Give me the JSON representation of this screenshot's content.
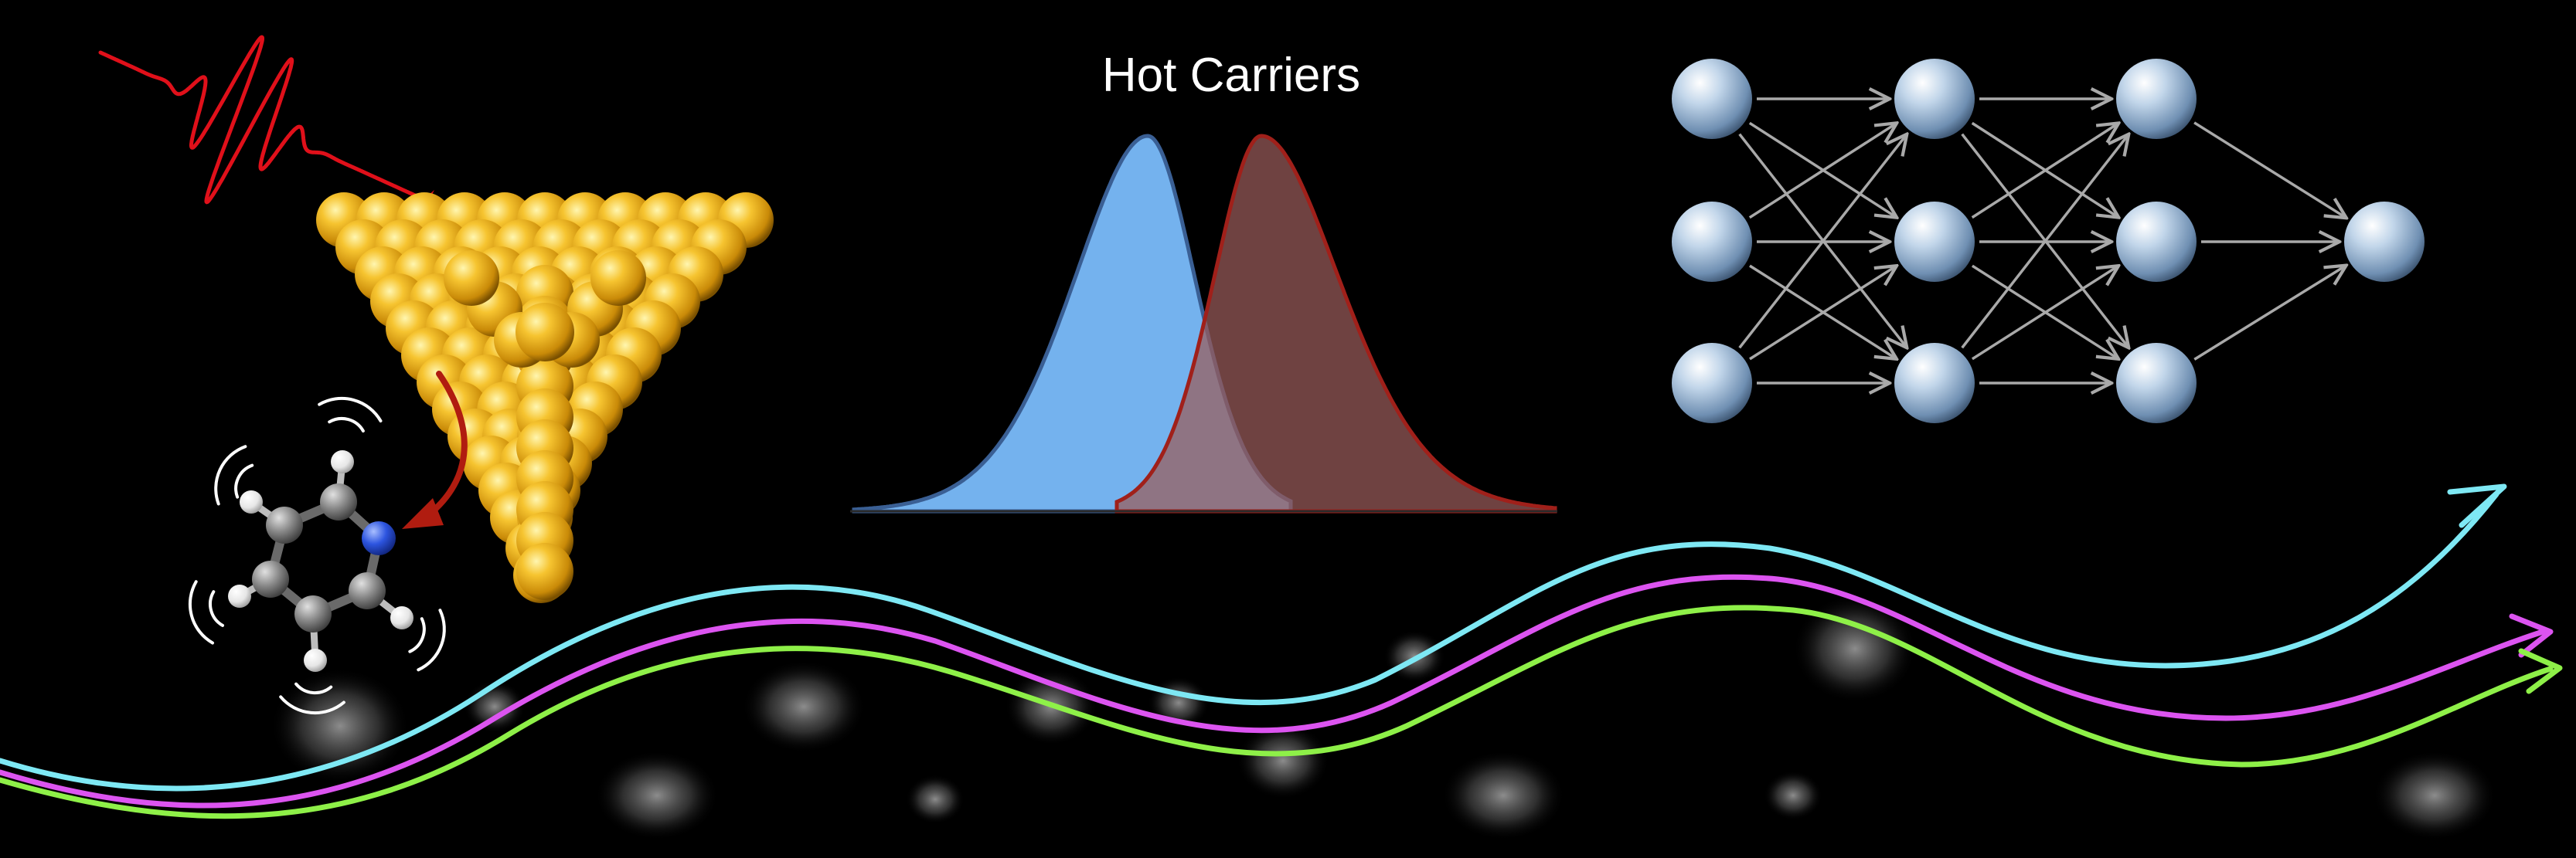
{
  "title": "Hot Carriers",
  "colors": {
    "background": "#000000",
    "laser_pulse": "#e0101a",
    "gold_atom": "#f2b82a",
    "electron_curve_fill": "#74b2ee",
    "electron_curve_stroke": "#3a5f94",
    "hole_curve_fill": "#9a5c5a",
    "hole_curve_stroke": "#a0201a",
    "transfer_arrow": "#b01c10",
    "network_node": "#a8c2dc",
    "network_edge": "#a9a9a9",
    "trajectory_cyan": "#7ee8f4",
    "trajectory_magenta": "#dc54f0",
    "trajectory_green": "#8ef048",
    "carbon": "#8a8a8a",
    "nitrogen": "#2d55e0",
    "hydrogen": "#f4f4f4"
  },
  "icons": {
    "laser": "laser-pulse-icon",
    "nanoparticle": "gold-nanoparticle-icon",
    "molecule": "pyridine-molecule-icon",
    "network": "neural-network-icon"
  },
  "network": {
    "layers": [
      3,
      3,
      3,
      1
    ]
  },
  "trajectories": [
    {
      "color_key": "trajectory_cyan"
    },
    {
      "color_key": "trajectory_magenta"
    },
    {
      "color_key": "trajectory_green"
    }
  ]
}
